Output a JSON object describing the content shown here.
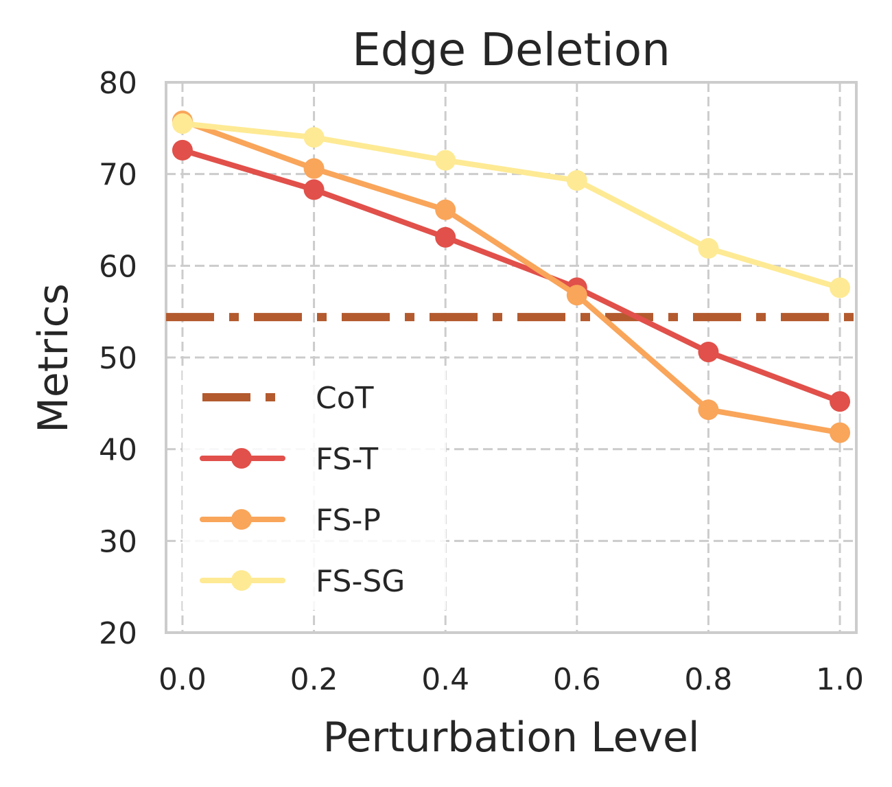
{
  "chart_data": {
    "type": "line",
    "title": "Edge Deletion",
    "xlabel": "Perturbation Level",
    "ylabel": "Metrics",
    "x": [
      0.0,
      0.2,
      0.4,
      0.6,
      0.8,
      1.0
    ],
    "x_tick_labels": [
      "0.0",
      "0.2",
      "0.4",
      "0.6",
      "0.8",
      "1.0"
    ],
    "y_ticks": [
      20,
      30,
      40,
      50,
      60,
      70,
      80
    ],
    "y_tick_labels": [
      "20",
      "30",
      "40",
      "50",
      "60",
      "70",
      "80"
    ],
    "xlim": [
      -0.025,
      1.025
    ],
    "ylim": [
      20,
      80
    ],
    "grid": true,
    "legend_position": "lower-left",
    "baseline": {
      "name": "CoT",
      "value": 54.4,
      "color": "#b35a2e",
      "style": "dash-dot"
    },
    "series": [
      {
        "name": "FS-T",
        "color": "#e1504a",
        "values": [
          72.6,
          68.3,
          63.1,
          57.6,
          50.6,
          45.2
        ]
      },
      {
        "name": "FS-P",
        "color": "#f9a55a",
        "values": [
          75.8,
          70.6,
          66.1,
          56.8,
          44.3,
          41.8
        ]
      },
      {
        "name": "FS-SG",
        "color": "#feea94",
        "values": [
          75.5,
          74.0,
          71.5,
          69.3,
          61.9,
          57.6
        ]
      }
    ]
  }
}
